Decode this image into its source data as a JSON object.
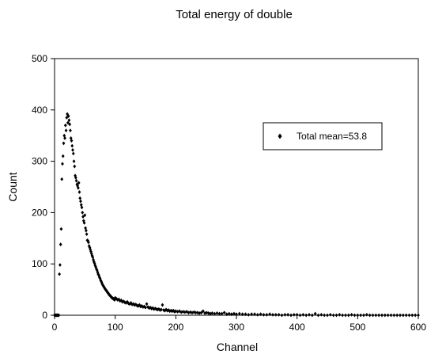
{
  "chart_data": {
    "type": "scatter",
    "title": "Total energy of double",
    "xlabel": "Channel",
    "ylabel": "Count",
    "xlim": [
      0,
      600
    ],
    "ylim": [
      0,
      500
    ],
    "xticks": [
      "0",
      "100",
      "200",
      "300",
      "400",
      "500",
      "600"
    ],
    "yticks": [
      "0",
      "100",
      "200",
      "300",
      "400",
      "500"
    ],
    "grid": false,
    "legend": {
      "position": "upper-right",
      "marker": "diamond"
    },
    "series": [
      {
        "name": "Total mean=53.8",
        "color": "#000000",
        "points": [
          [
            0,
            0
          ],
          [
            1,
            0
          ],
          [
            2,
            0
          ],
          [
            3,
            0
          ],
          [
            4,
            0
          ],
          [
            5,
            0
          ],
          [
            6,
            0
          ],
          [
            7,
            0
          ],
          [
            8,
            80
          ],
          [
            9,
            98
          ],
          [
            10,
            138
          ],
          [
            11,
            168
          ],
          [
            12,
            265
          ],
          [
            13,
            295
          ],
          [
            14,
            310
          ],
          [
            15,
            335
          ],
          [
            16,
            350
          ],
          [
            17,
            345
          ],
          [
            18,
            370
          ],
          [
            19,
            360
          ],
          [
            20,
            385
          ],
          [
            21,
            392
          ],
          [
            22,
            375
          ],
          [
            23,
            388
          ],
          [
            24,
            380
          ],
          [
            25,
            372
          ],
          [
            26,
            360
          ],
          [
            27,
            345
          ],
          [
            28,
            340
          ],
          [
            29,
            330
          ],
          [
            30,
            322
          ],
          [
            31,
            315
          ],
          [
            32,
            300
          ],
          [
            33,
            290
          ],
          [
            34,
            272
          ],
          [
            35,
            268
          ],
          [
            36,
            262
          ],
          [
            37,
            255
          ],
          [
            38,
            252
          ],
          [
            39,
            248
          ],
          [
            40,
            258
          ],
          [
            41,
            240
          ],
          [
            42,
            228
          ],
          [
            43,
            222
          ],
          [
            44,
            215
          ],
          [
            45,
            210
          ],
          [
            46,
            200
          ],
          [
            47,
            192
          ],
          [
            48,
            184
          ],
          [
            49,
            180
          ],
          [
            50,
            195
          ],
          [
            51,
            170
          ],
          [
            52,
            165
          ],
          [
            53,
            158
          ],
          [
            54,
            146
          ],
          [
            55,
            145
          ],
          [
            56,
            142
          ],
          [
            57,
            135
          ],
          [
            58,
            132
          ],
          [
            59,
            128
          ],
          [
            60,
            124
          ],
          [
            61,
            120
          ],
          [
            62,
            116
          ],
          [
            63,
            113
          ],
          [
            64,
            108
          ],
          [
            65,
            104
          ],
          [
            66,
            101
          ],
          [
            67,
            97
          ],
          [
            68,
            94
          ],
          [
            69,
            90
          ],
          [
            70,
            88
          ],
          [
            71,
            84
          ],
          [
            72,
            80
          ],
          [
            73,
            78
          ],
          [
            74,
            74
          ],
          [
            75,
            72
          ],
          [
            76,
            68
          ],
          [
            77,
            66
          ],
          [
            78,
            63
          ],
          [
            79,
            60
          ],
          [
            80,
            58
          ],
          [
            81,
            56
          ],
          [
            82,
            54
          ],
          [
            83,
            52
          ],
          [
            84,
            50
          ],
          [
            85,
            49
          ],
          [
            86,
            47
          ],
          [
            87,
            45
          ],
          [
            88,
            44
          ],
          [
            89,
            42
          ],
          [
            90,
            40
          ],
          [
            91,
            39
          ],
          [
            92,
            38
          ],
          [
            93,
            36
          ],
          [
            94,
            35
          ],
          [
            95,
            34
          ],
          [
            96,
            33
          ],
          [
            97,
            32
          ],
          [
            98,
            31
          ],
          [
            99,
            30
          ],
          [
            100,
            34
          ],
          [
            102,
            32
          ],
          [
            104,
            30
          ],
          [
            106,
            31
          ],
          [
            108,
            28
          ],
          [
            110,
            29
          ],
          [
            112,
            26
          ],
          [
            114,
            27
          ],
          [
            116,
            25
          ],
          [
            118,
            24
          ],
          [
            120,
            26
          ],
          [
            122,
            23
          ],
          [
            124,
            22
          ],
          [
            126,
            24
          ],
          [
            128,
            21
          ],
          [
            130,
            22
          ],
          [
            132,
            20
          ],
          [
            134,
            21
          ],
          [
            136,
            19
          ],
          [
            138,
            18
          ],
          [
            140,
            20
          ],
          [
            142,
            17
          ],
          [
            144,
            18
          ],
          [
            146,
            16
          ],
          [
            148,
            17
          ],
          [
            150,
            15
          ],
          [
            152,
            22
          ],
          [
            154,
            16
          ],
          [
            156,
            14
          ],
          [
            158,
            15
          ],
          [
            160,
            13
          ],
          [
            162,
            14
          ],
          [
            164,
            12
          ],
          [
            166,
            13
          ],
          [
            168,
            12
          ],
          [
            170,
            11
          ],
          [
            172,
            12
          ],
          [
            174,
            10
          ],
          [
            176,
            11
          ],
          [
            178,
            20
          ],
          [
            180,
            10
          ],
          [
            182,
            9
          ],
          [
            184,
            11
          ],
          [
            186,
            9
          ],
          [
            188,
            10
          ],
          [
            190,
            8
          ],
          [
            192,
            9
          ],
          [
            194,
            8
          ],
          [
            196,
            9
          ],
          [
            198,
            7
          ],
          [
            200,
            8
          ],
          [
            203,
            7
          ],
          [
            206,
            8
          ],
          [
            209,
            6
          ],
          [
            212,
            7
          ],
          [
            215,
            6
          ],
          [
            218,
            7
          ],
          [
            221,
            5
          ],
          [
            224,
            6
          ],
          [
            227,
            5
          ],
          [
            230,
            6
          ],
          [
            233,
            5
          ],
          [
            236,
            5
          ],
          [
            239,
            4
          ],
          [
            242,
            5
          ],
          [
            245,
            8
          ],
          [
            248,
            4
          ],
          [
            251,
            5
          ],
          [
            254,
            4
          ],
          [
            257,
            3
          ],
          [
            260,
            4
          ],
          [
            264,
            3
          ],
          [
            268,
            4
          ],
          [
            272,
            3
          ],
          [
            276,
            3
          ],
          [
            280,
            5
          ],
          [
            284,
            2
          ],
          [
            288,
            3
          ],
          [
            292,
            2
          ],
          [
            296,
            3
          ],
          [
            300,
            2
          ],
          [
            305,
            3
          ],
          [
            310,
            2
          ],
          [
            315,
            2
          ],
          [
            320,
            1
          ],
          [
            325,
            2
          ],
          [
            330,
            2
          ],
          [
            335,
            1
          ],
          [
            340,
            2
          ],
          [
            345,
            1
          ],
          [
            350,
            1
          ],
          [
            355,
            2
          ],
          [
            360,
            1
          ],
          [
            365,
            1
          ],
          [
            370,
            1
          ],
          [
            375,
            0
          ],
          [
            380,
            1
          ],
          [
            385,
            1
          ],
          [
            390,
            0
          ],
          [
            395,
            1
          ],
          [
            400,
            1
          ],
          [
            405,
            0
          ],
          [
            410,
            1
          ],
          [
            415,
            0
          ],
          [
            420,
            1
          ],
          [
            425,
            0
          ],
          [
            430,
            3
          ],
          [
            435,
            0
          ],
          [
            440,
            1
          ],
          [
            445,
            0
          ],
          [
            450,
            0
          ],
          [
            455,
            1
          ],
          [
            460,
            0
          ],
          [
            465,
            0
          ],
          [
            470,
            1
          ],
          [
            475,
            0
          ],
          [
            480,
            0
          ],
          [
            485,
            0
          ],
          [
            490,
            1
          ],
          [
            495,
            0
          ],
          [
            500,
            0
          ],
          [
            505,
            0
          ],
          [
            510,
            0
          ],
          [
            515,
            1
          ],
          [
            520,
            0
          ],
          [
            525,
            0
          ],
          [
            530,
            0
          ],
          [
            535,
            0
          ],
          [
            540,
            0
          ],
          [
            545,
            0
          ],
          [
            550,
            0
          ],
          [
            555,
            0
          ],
          [
            560,
            0
          ],
          [
            565,
            0
          ],
          [
            570,
            0
          ],
          [
            575,
            0
          ],
          [
            580,
            0
          ],
          [
            585,
            0
          ],
          [
            590,
            0
          ],
          [
            595,
            0
          ],
          [
            600,
            0
          ]
        ]
      }
    ]
  }
}
